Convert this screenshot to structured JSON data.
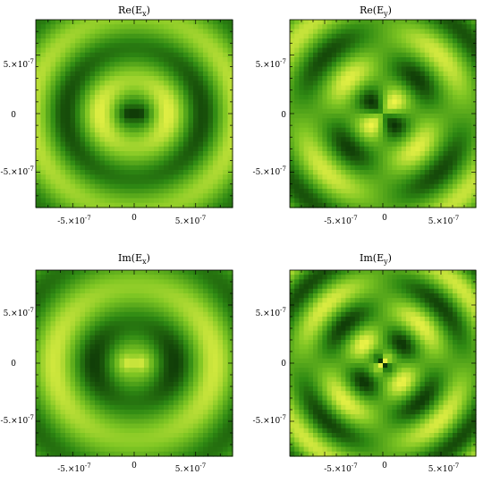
{
  "chart_data": [
    {
      "type": "heatmap",
      "title": "Re(E_x)",
      "title_main": "Re(E",
      "title_sub": "x",
      "title_close": ")",
      "field": "re_ex",
      "xlim": [
        -8e-07,
        8e-07
      ],
      "ylim": [
        -8e-07,
        8e-07
      ],
      "x_ticks": [
        "-5.×10",
        "0",
        "5.×10"
      ],
      "y_ticks": [
        "5.×10",
        "0",
        "-5.×10"
      ],
      "tick_exponent": "-7",
      "colormap": [
        "#0a2d05",
        "#2f8a13",
        "#7fc623",
        "#f6f74a"
      ]
    },
    {
      "type": "heatmap",
      "title": "Re(E_y)",
      "title_main": "Re(E",
      "title_sub": "y",
      "title_close": ")",
      "field": "re_ey",
      "xlim": [
        -8e-07,
        8e-07
      ],
      "ylim": [
        -8e-07,
        8e-07
      ],
      "x_ticks": [
        "-5.×10",
        "0",
        "5.×10"
      ],
      "y_ticks": [
        "5.×10",
        "0",
        "-5.×10"
      ],
      "tick_exponent": "-7",
      "colormap": [
        "#0a2d05",
        "#2f8a13",
        "#7fc623",
        "#f6f74a"
      ]
    },
    {
      "type": "heatmap",
      "title": "Im(E_x)",
      "title_main": "Im(E",
      "title_sub": "x",
      "title_close": ")",
      "field": "im_ex",
      "xlim": [
        -8e-07,
        8e-07
      ],
      "ylim": [
        -8e-07,
        8e-07
      ],
      "x_ticks": [
        "-5.×10",
        "0",
        "5.×10"
      ],
      "y_ticks": [
        "5.×10",
        "0",
        "-5.×10"
      ],
      "tick_exponent": "-7",
      "colormap": [
        "#0a2d05",
        "#2f8a13",
        "#7fc623",
        "#f6f74a"
      ]
    },
    {
      "type": "heatmap",
      "title": "Im(E_y)",
      "title_main": "Im(E",
      "title_sub": "y",
      "title_close": ")",
      "field": "im_ey",
      "xlim": [
        -8e-07,
        8e-07
      ],
      "ylim": [
        -8e-07,
        8e-07
      ],
      "x_ticks": [
        "-5.×10",
        "0",
        "5.×10"
      ],
      "y_ticks": [
        "5.×10",
        "0",
        "-5.×10"
      ],
      "tick_exponent": "-7",
      "colormap": [
        "#0a2d05",
        "#2f8a13",
        "#7fc623",
        "#f6f74a"
      ]
    }
  ]
}
